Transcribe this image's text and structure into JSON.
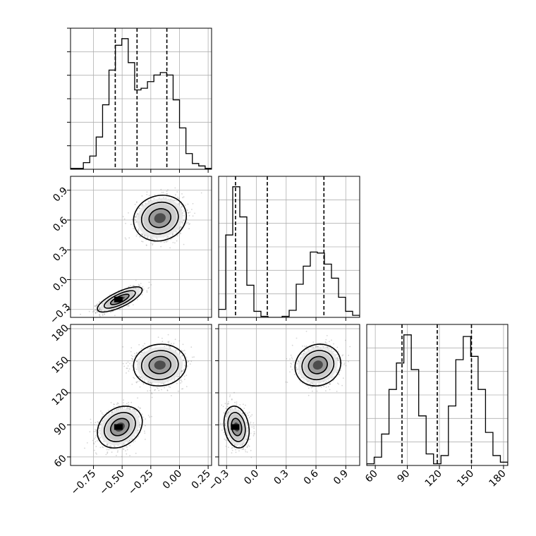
{
  "chart_data": {
    "type": "corner",
    "title": "",
    "parameters": [
      "",
      "",
      ""
    ],
    "grid": true,
    "colors": {
      "line": "#000000",
      "grid": "#b0b0b0",
      "scatter": "#888888",
      "fill_light": "#e6e6e6",
      "fill_dark": "#000000"
    },
    "ranges": [
      [
        -0.95,
        0.28
      ],
      [
        -0.38,
        1.04
      ],
      [
        52,
        184
      ]
    ],
    "quantiles": [
      [
        -0.56,
        -0.37,
        -0.11
      ],
      [
        -0.21,
        0.11,
        0.68
      ],
      [
        85,
        118,
        150
      ]
    ],
    "ticks": [
      {
        "values": [
          -0.75,
          -0.5,
          -0.25,
          0.0,
          0.25
        ],
        "labels": [
          "−0.75",
          "−0.50",
          "−0.25",
          "0.00",
          "0.25"
        ]
      },
      {
        "values": [
          -0.3,
          0.0,
          0.3,
          0.6,
          0.9
        ],
        "labels": [
          "−0.3",
          "0.0",
          "0.3",
          "0.6",
          "0.9"
        ]
      },
      {
        "values": [
          60,
          90,
          120,
          150,
          180
        ],
        "labels": [
          "60",
          "90",
          "120",
          "150",
          "180"
        ]
      }
    ],
    "histograms": [
      {
        "counts": [
          1,
          1,
          8,
          16,
          39,
          78,
          120,
          150,
          158,
          129,
          96,
          98,
          106,
          114,
          117,
          114,
          84,
          50,
          19,
          7,
          4,
          1
        ]
      },
      {
        "counts": [
          8,
          82,
          130,
          100,
          32,
          6,
          1,
          0,
          0,
          1,
          7,
          33,
          51,
          65,
          64,
          53,
          39,
          20,
          6,
          2
        ]
      },
      {
        "counts": [
          1,
          5,
          19,
          46,
          62,
          79,
          58,
          30,
          7,
          1,
          6,
          36,
          64,
          78,
          66,
          46,
          20,
          6,
          2
        ]
      }
    ],
    "components": [
      {
        "mean": [
          -0.52,
          -0.2,
          88
        ],
        "sd": [
          0.085,
          0.055,
          8.5
        ]
      },
      {
        "mean": [
          -0.17,
          0.62,
          146
        ],
        "sd": [
          0.1,
          0.1,
          8.5
        ]
      }
    ],
    "correlations": {
      "p1_p0": [
        0.75,
        0.1
      ],
      "p2_p0": [
        0.25,
        0.05
      ],
      "p2_p1": [
        -0.2,
        0.1
      ]
    }
  }
}
